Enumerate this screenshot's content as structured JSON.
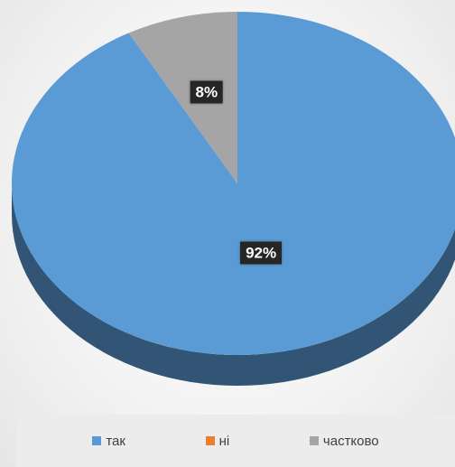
{
  "chart_data": {
    "type": "pie",
    "style": "3d",
    "categories": [
      "так",
      "ні",
      "частково"
    ],
    "values": [
      92,
      0,
      8
    ],
    "data_labels": [
      "92%",
      "",
      "8%"
    ],
    "colors": [
      "#5b9bd5",
      "#ed7d31",
      "#a5a5a5"
    ],
    "legend_position": "bottom",
    "title": ""
  },
  "legend": {
    "items": [
      {
        "label": "так",
        "color": "#5b9bd5"
      },
      {
        "label": "ні",
        "color": "#ed7d31"
      },
      {
        "label": "частково",
        "color": "#a5a5a5"
      }
    ]
  }
}
